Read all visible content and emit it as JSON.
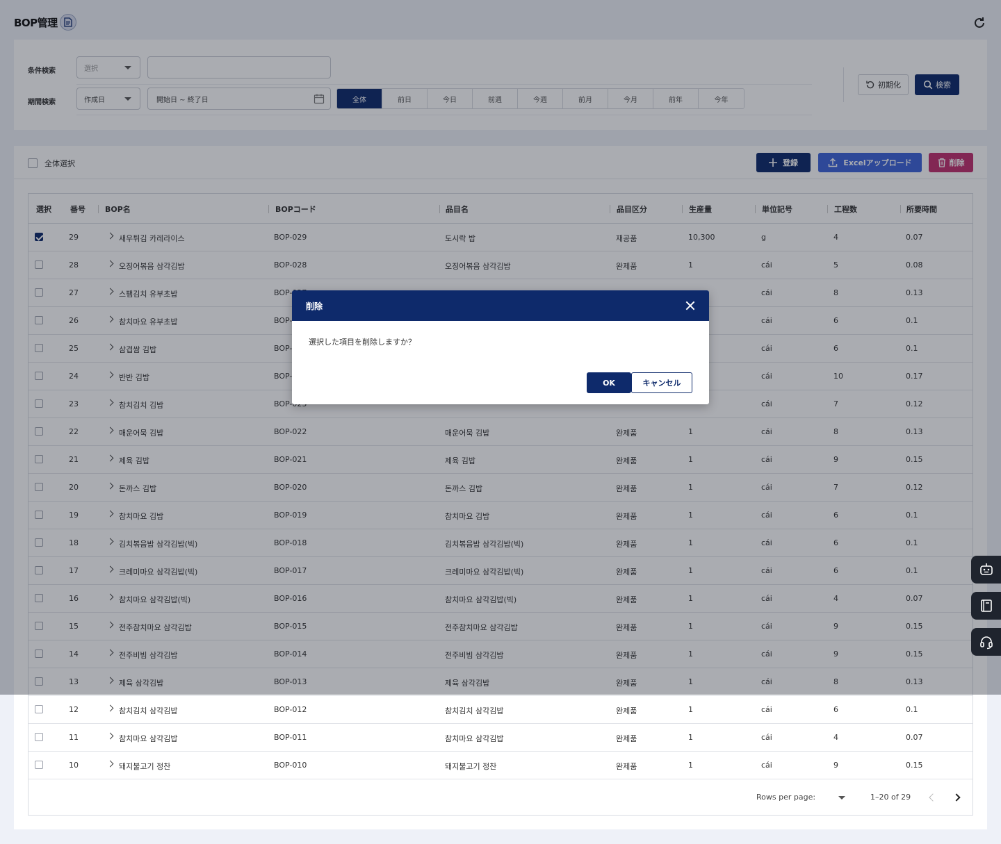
{
  "page": {
    "title": "BOP管理"
  },
  "search": {
    "condition_label": "条件検索",
    "condition_select": "選択",
    "condition_input_value": "",
    "period_label": "期間検索",
    "period_select": "作成日",
    "date_range_placeholder": "開始日 ~ 終了日",
    "period_buttons": [
      "全体",
      "前日",
      "今日",
      "前週",
      "今週",
      "前月",
      "今月",
      "前年",
      "今年"
    ],
    "active_period": "全体",
    "reset_label": "初期化",
    "search_label": "検索"
  },
  "toolbar": {
    "select_all_label": "全体選択",
    "add_label": "登録",
    "excel_label": "Excelアップロード",
    "delete_label": "削除"
  },
  "table": {
    "columns": [
      "選択",
      "番号",
      "BOP名",
      "BOPコード",
      "品目名",
      "品目区分",
      "生産量",
      "単位記号",
      "工程数",
      "所要時間"
    ],
    "rows": [
      {
        "checked": true,
        "no": "29",
        "name": "새우튀김 카레라이스",
        "code": "BOP-029",
        "item": "도시락 밥",
        "category": "재공품",
        "qty": "10,300",
        "unit": "g",
        "steps": "4",
        "time": "0.07"
      },
      {
        "checked": false,
        "no": "28",
        "name": "오징어볶음 삼각김밥",
        "code": "BOP-028",
        "item": "오징어볶음 삼각김밥",
        "category": "완제품",
        "qty": "1",
        "unit": "cái",
        "steps": "5",
        "time": "0.08"
      },
      {
        "checked": false,
        "no": "27",
        "name": "스팸김치 유부초밥",
        "code": "BOP-027",
        "item": "",
        "category": "",
        "qty": "",
        "unit": "cái",
        "steps": "8",
        "time": "0.13"
      },
      {
        "checked": false,
        "no": "26",
        "name": "참치마요 유부초밥",
        "code": "BOP-026",
        "item": "",
        "category": "",
        "qty": "",
        "unit": "cái",
        "steps": "6",
        "time": "0.1"
      },
      {
        "checked": false,
        "no": "25",
        "name": "삼겹쌈 김밥",
        "code": "BOP-025",
        "item": "",
        "category": "",
        "qty": "",
        "unit": "cái",
        "steps": "6",
        "time": "0.1"
      },
      {
        "checked": false,
        "no": "24",
        "name": "반반 김밥",
        "code": "BOP-024",
        "item": "",
        "category": "",
        "qty": "",
        "unit": "cái",
        "steps": "10",
        "time": "0.17"
      },
      {
        "checked": false,
        "no": "23",
        "name": "참치김치 김밥",
        "code": "BOP-023",
        "item": "",
        "category": "",
        "qty": "",
        "unit": "cái",
        "steps": "7",
        "time": "0.12"
      },
      {
        "checked": false,
        "no": "22",
        "name": "매운어묵 김밥",
        "code": "BOP-022",
        "item": "매운어묵 김밥",
        "category": "완제품",
        "qty": "1",
        "unit": "cái",
        "steps": "8",
        "time": "0.13"
      },
      {
        "checked": false,
        "no": "21",
        "name": "제육 김밥",
        "code": "BOP-021",
        "item": "제육 김밥",
        "category": "완제품",
        "qty": "1",
        "unit": "cái",
        "steps": "9",
        "time": "0.15"
      },
      {
        "checked": false,
        "no": "20",
        "name": "돈까스 김밥",
        "code": "BOP-020",
        "item": "돈까스 김밥",
        "category": "완제품",
        "qty": "1",
        "unit": "cái",
        "steps": "7",
        "time": "0.12"
      },
      {
        "checked": false,
        "no": "19",
        "name": "참치마요 김밥",
        "code": "BOP-019",
        "item": "참치마요 김밥",
        "category": "완제품",
        "qty": "1",
        "unit": "cái",
        "steps": "6",
        "time": "0.1"
      },
      {
        "checked": false,
        "no": "18",
        "name": "김치볶음밥 삼각김밥(빅)",
        "code": "BOP-018",
        "item": "김치볶음밥 삼각김밥(빅)",
        "category": "완제품",
        "qty": "1",
        "unit": "cái",
        "steps": "6",
        "time": "0.1"
      },
      {
        "checked": false,
        "no": "17",
        "name": "크레미마요 삼각김밥(빅)",
        "code": "BOP-017",
        "item": "크레미마요 삼각김밥(빅)",
        "category": "완제품",
        "qty": "1",
        "unit": "cái",
        "steps": "6",
        "time": "0.1"
      },
      {
        "checked": false,
        "no": "16",
        "name": "참치마요 삼각김밥(빅)",
        "code": "BOP-016",
        "item": "참치마요 삼각김밥(빅)",
        "category": "완제품",
        "qty": "1",
        "unit": "cái",
        "steps": "4",
        "time": "0.07"
      },
      {
        "checked": false,
        "no": "15",
        "name": "전주참치마요 삼각김밥",
        "code": "BOP-015",
        "item": "전주참치마요 삼각김밥",
        "category": "완제품",
        "qty": "1",
        "unit": "cái",
        "steps": "9",
        "time": "0.15"
      },
      {
        "checked": false,
        "no": "14",
        "name": "전주비빔 삼각김밥",
        "code": "BOP-014",
        "item": "전주비빔 삼각김밥",
        "category": "완제품",
        "qty": "1",
        "unit": "cái",
        "steps": "9",
        "time": "0.15"
      },
      {
        "checked": false,
        "no": "13",
        "name": "제육 삼각김밥",
        "code": "BOP-013",
        "item": "제육 삼각김밥",
        "category": "완제품",
        "qty": "1",
        "unit": "cái",
        "steps": "8",
        "time": "0.13"
      },
      {
        "checked": false,
        "no": "12",
        "name": "참치김치 삼각김밥",
        "code": "BOP-012",
        "item": "참치김치 삼각김밥",
        "category": "완제품",
        "qty": "1",
        "unit": "cái",
        "steps": "6",
        "time": "0.1"
      },
      {
        "checked": false,
        "no": "11",
        "name": "참치마요 삼각김밥",
        "code": "BOP-011",
        "item": "참치마요 삼각김밥",
        "category": "완제품",
        "qty": "1",
        "unit": "cái",
        "steps": "4",
        "time": "0.07"
      },
      {
        "checked": false,
        "no": "10",
        "name": "돼지불고기 정찬",
        "code": "BOP-010",
        "item": "돼지불고기 정찬",
        "category": "완제품",
        "qty": "1",
        "unit": "cái",
        "steps": "9",
        "time": "0.15"
      }
    ]
  },
  "pagination": {
    "rows_per_page_label": "Rows per page:",
    "rows_per_page_value": "",
    "range_text": "1–20 of 29"
  },
  "side_buttons": [
    "robot-icon",
    "book-icon",
    "headset-icon"
  ],
  "modal": {
    "title": "削除",
    "message": "選択した項目を削除しますか？",
    "ok_label": "OK",
    "cancel_label": "キャンセル"
  },
  "colors": {
    "primary": "#0e2a6b",
    "excel": "#3d63d8",
    "delete": "#c0306e"
  }
}
